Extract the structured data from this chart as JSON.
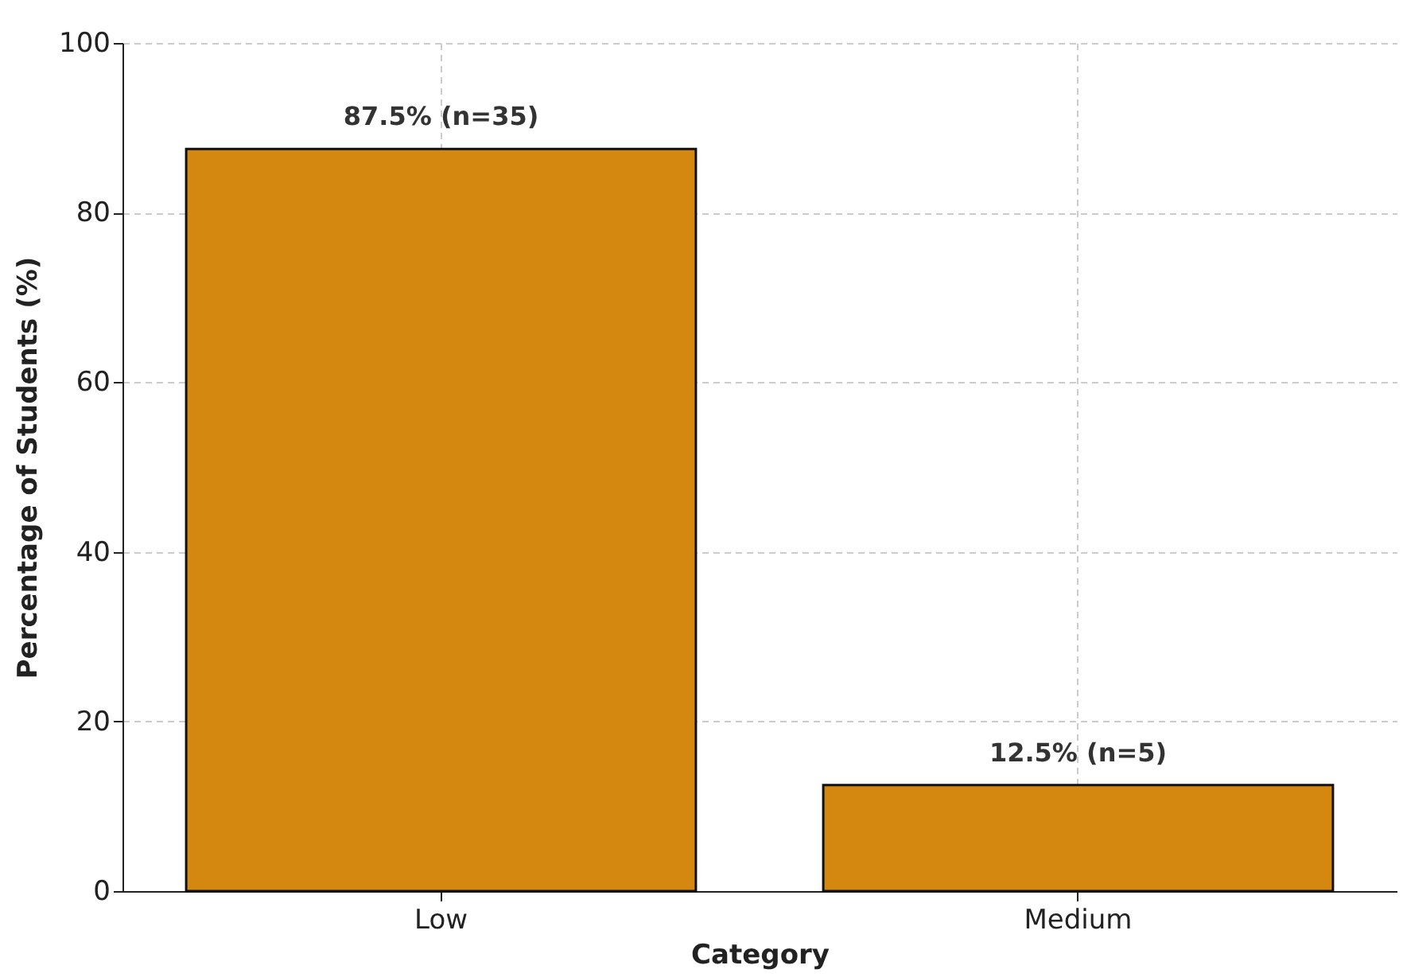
{
  "chart_data": {
    "type": "bar",
    "xlabel": "Category",
    "ylabel": "Percentage of Students (%)",
    "categories": [
      "Low",
      "Medium"
    ],
    "values": [
      87.5,
      12.5
    ],
    "value_labels": [
      "87.5% (n=35)",
      "12.5% (n=5)"
    ],
    "color": "#d4880f",
    "ylim": [
      0,
      100
    ],
    "yticks": [
      0,
      20,
      40,
      60,
      80,
      100
    ],
    "grid": true
  }
}
